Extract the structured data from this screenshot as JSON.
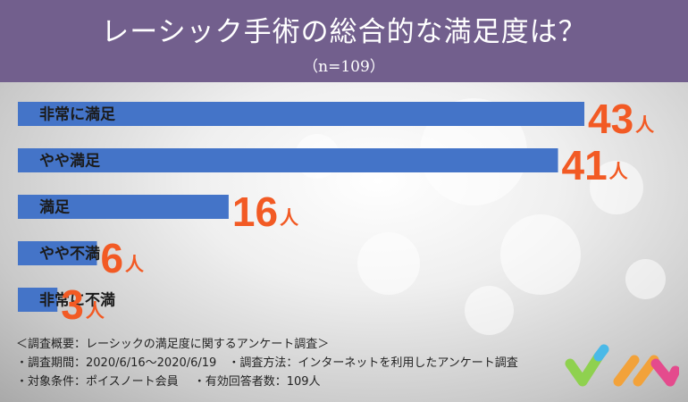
{
  "header": {
    "title": "レーシック手術の総合的な満足度は？",
    "subtitle": "（n=109）",
    "background": "#725f8d"
  },
  "chart_data": {
    "type": "bar",
    "orientation": "horizontal",
    "categories": [
      "非常に満足",
      "やや満足",
      "満足",
      "やや不満",
      "非常に不満"
    ],
    "values": [
      43,
      41,
      16,
      6,
      3
    ],
    "value_unit": "人",
    "bar_color": "#4474c8",
    "label_color": "#f25a24"
  },
  "notes": {
    "line1": "＜調査概要：レーシックの満足度に関するアンケート調査＞",
    "line2": "・調査期間：2020/6/16〜2020/6/19　・調査方法：インターネットを利用したアンケート調査",
    "line3": "・対象条件：ポイスノート会員　 ・有効回答者数：109人"
  },
  "logo": {
    "icon": "check-logo-icon",
    "colors": [
      "#8fd14f",
      "#4ab9e8",
      "#f2a23a",
      "#e44b8d"
    ]
  }
}
